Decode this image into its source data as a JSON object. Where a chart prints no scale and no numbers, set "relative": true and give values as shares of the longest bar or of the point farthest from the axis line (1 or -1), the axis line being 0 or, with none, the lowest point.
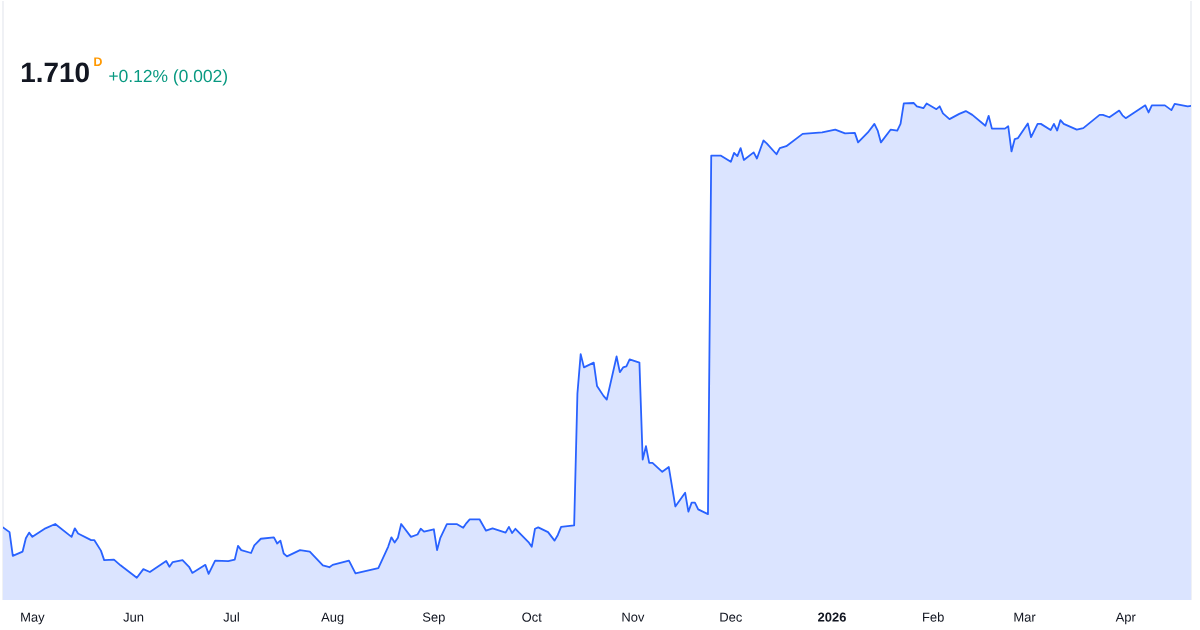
{
  "chart_data": {
    "type": "area",
    "relative": true,
    "color": "#2962ff",
    "annotations": [
      "1.710",
      "D",
      "+0.12% (0.002)"
    ],
    "xlim": [
      "2025-04-22",
      "2026-04-21"
    ],
    "xticks": [
      {
        "value": "2025-05-01",
        "label": "May"
      },
      {
        "value": "2025-06-01",
        "label": "Jun"
      },
      {
        "value": "2025-07-01",
        "label": "Jul"
      },
      {
        "value": "2025-08-01",
        "label": "Aug"
      },
      {
        "value": "2025-09-01",
        "label": "Sep"
      },
      {
        "value": "2025-10-01",
        "label": "Oct"
      },
      {
        "value": "2025-11-01",
        "label": "Nov"
      },
      {
        "value": "2025-12-01",
        "label": "Dec"
      },
      {
        "value": "2026-01-01",
        "label": "2026"
      },
      {
        "value": "2026-02-01",
        "label": "Feb"
      },
      {
        "value": "2026-03-01",
        "label": "Mar"
      },
      {
        "value": "2026-04-01",
        "label": "Apr"
      }
    ],
    "x": [
      "2025-04-22",
      "2025-04-24",
      "2025-04-25",
      "2025-04-28",
      "2025-04-29",
      "2025-04-30",
      "2025-05-01",
      "2025-05-05",
      "2025-05-08",
      "2025-05-13",
      "2025-05-14",
      "2025-05-15",
      "2025-05-19",
      "2025-05-20",
      "2025-05-22",
      "2025-05-23",
      "2025-05-26",
      "2025-05-28",
      "2025-06-02",
      "2025-06-04",
      "2025-06-06",
      "2025-06-11",
      "2025-06-12",
      "2025-06-13",
      "2025-06-16",
      "2025-06-18",
      "2025-06-19",
      "2025-06-23",
      "2025-06-24",
      "2025-06-26",
      "2025-06-30",
      "2025-07-02",
      "2025-07-03",
      "2025-07-04",
      "2025-07-07",
      "2025-07-08",
      "2025-07-10",
      "2025-07-14",
      "2025-07-15",
      "2025-07-16",
      "2025-07-17",
      "2025-07-18",
      "2025-07-22",
      "2025-07-25",
      "2025-07-29",
      "2025-07-31",
      "2025-08-01",
      "2025-08-06",
      "2025-08-08",
      "2025-08-15",
      "2025-08-18",
      "2025-08-19",
      "2025-08-20",
      "2025-08-21",
      "2025-08-22",
      "2025-08-25",
      "2025-08-27",
      "2025-08-28",
      "2025-08-29",
      "2025-09-01",
      "2025-09-02",
      "2025-09-03",
      "2025-09-05",
      "2025-09-08",
      "2025-09-10",
      "2025-09-11",
      "2025-09-12",
      "2025-09-15",
      "2025-09-17",
      "2025-09-19",
      "2025-09-23",
      "2025-09-24",
      "2025-09-25",
      "2025-09-26",
      "2025-09-30",
      "2025-10-01",
      "2025-10-02",
      "2025-10-03",
      "2025-10-06",
      "2025-10-08",
      "2025-10-09",
      "2025-10-10",
      "2025-10-14",
      "2025-10-15",
      "2025-10-16",
      "2025-10-17",
      "2025-10-20",
      "2025-10-21",
      "2025-10-23",
      "2025-10-24",
      "2025-10-27",
      "2025-10-28",
      "2025-10-29",
      "2025-10-30",
      "2025-10-31",
      "2025-11-03",
      "2025-11-04",
      "2025-11-05",
      "2025-11-06",
      "2025-11-07",
      "2025-11-10",
      "2025-11-12",
      "2025-11-14",
      "2025-11-17",
      "2025-11-18",
      "2025-11-19",
      "2025-11-20",
      "2025-11-21",
      "2025-11-24",
      "2025-11-25",
      "2025-11-28",
      "2025-12-01",
      "2025-12-02",
      "2025-12-03",
      "2025-12-04",
      "2025-12-05",
      "2025-12-08",
      "2025-12-09",
      "2025-12-11",
      "2025-12-12",
      "2025-12-15",
      "2025-12-16",
      "2025-12-18",
      "2025-12-23",
      "2025-12-29",
      "2026-01-02",
      "2026-01-05",
      "2026-01-08",
      "2026-01-09",
      "2026-01-12",
      "2026-01-14",
      "2026-01-15",
      "2026-01-16",
      "2026-01-19",
      "2026-01-21",
      "2026-01-22",
      "2026-01-23",
      "2026-01-26",
      "2026-01-27",
      "2026-01-29",
      "2026-01-30",
      "2026-02-02",
      "2026-02-03",
      "2026-02-04",
      "2026-02-06",
      "2026-02-09",
      "2026-02-11",
      "2026-02-13",
      "2026-02-17",
      "2026-02-18",
      "2026-02-19",
      "2026-02-23",
      "2026-02-24",
      "2026-02-25",
      "2026-02-26",
      "2026-02-27",
      "2026-03-02",
      "2026-03-03",
      "2026-03-05",
      "2026-03-06",
      "2026-03-09",
      "2026-03-10",
      "2026-03-11",
      "2026-03-12",
      "2026-03-13",
      "2026-03-17",
      "2026-03-19",
      "2026-03-24",
      "2026-03-25",
      "2026-03-27",
      "2026-03-30",
      "2026-03-31",
      "2026-04-01",
      "2026-04-07",
      "2026-04-08",
      "2026-04-09",
      "2026-04-13",
      "2026-04-15",
      "2026-04-16",
      "2026-04-20",
      "2026-04-21"
    ],
    "values": [
      0.106,
      0.096,
      0.046,
      0.055,
      0.083,
      0.095,
      0.086,
      0.104,
      0.113,
      0.086,
      0.104,
      0.093,
      0.079,
      0.079,
      0.057,
      0.037,
      0.038,
      0.026,
      0,
      0.018,
      0.012,
      0.035,
      0.023,
      0.033,
      0.037,
      0.023,
      0.01,
      0.027,
      0.008,
      0.036,
      0.035,
      0.038,
      0.067,
      0.058,
      0.052,
      0.068,
      0.082,
      0.085,
      0.072,
      0.078,
      0.051,
      0.045,
      0.058,
      0.055,
      0.026,
      0.022,
      0.027,
      0.036,
      0.009,
      0.02,
      0.065,
      0.085,
      0.074,
      0.084,
      0.113,
      0.086,
      0.091,
      0.103,
      0.097,
      0.102,
      0.058,
      0.084,
      0.113,
      0.113,
      0.105,
      0.115,
      0.123,
      0.123,
      0.099,
      0.104,
      0.095,
      0.107,
      0.094,
      0.103,
      0.075,
      0.065,
      0.103,
      0.106,
      0.096,
      0.078,
      0.09,
      0.107,
      0.11,
      0.388,
      0.471,
      0.443,
      0.453,
      0.404,
      0.383,
      0.375,
      0.466,
      0.433,
      0.443,
      0.445,
      0.46,
      0.453,
      0.249,
      0.277,
      0.242,
      0.242,
      0.223,
      0.233,
      0.15,
      0.179,
      0.139,
      0.158,
      0.158,
      0.144,
      0.134,
      0.889,
      0.889,
      0.876,
      0.895,
      0.888,
      0.905,
      0.88,
      0.896,
      0.883,
      0.921,
      0.915,
      0.892,
      0.905,
      0.909,
      0.935,
      0.938,
      0.944,
      0.936,
      0.937,
      0.917,
      0.938,
      0.956,
      0.942,
      0.917,
      0.944,
      0.942,
      0.956,
      0.999,
      1.0,
      0.993,
      0.989,
      0.999,
      0.987,
      0.993,
      0.978,
      0.966,
      0.977,
      0.983,
      0.975,
      0.952,
      0.973,
      0.946,
      0.946,
      0.951,
      0.898,
      0.924,
      0.926,
      0.957,
      0.928,
      0.956,
      0.956,
      0.943,
      0.956,
      0.942,
      0.964,
      0.956,
      0.944,
      0.947,
      0.975,
      0.975,
      0.97,
      0.984,
      0.974,
      0.968,
      0.995,
      0.98,
      0.995,
      0.995,
      0.985,
      0.998,
      0.993,
      0.994
    ]
  }
}
